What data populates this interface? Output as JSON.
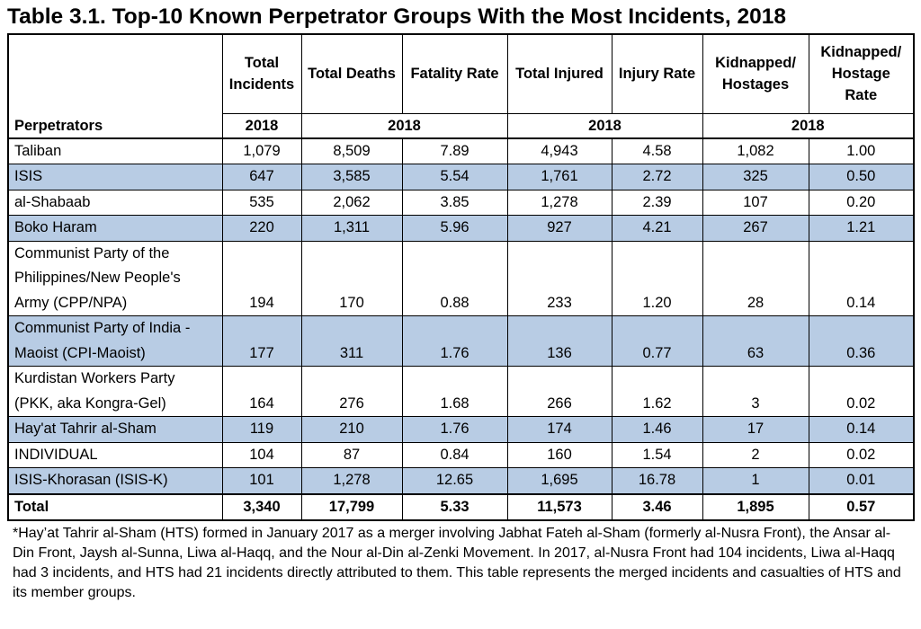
{
  "title": "Table 3.1.  Top-10 Known Perpetrator Groups With the Most Incidents, 2018",
  "headers": {
    "perpetrators": "Perpetrators",
    "total_incidents": "Total Incidents",
    "total_deaths": "Total Deaths",
    "fatality_rate": "Fatality Rate",
    "total_injured": "Total Injured",
    "injury_rate": "Injury Rate",
    "kidnapped": "Kidnapped/ Hostages",
    "kidnapped_rate": "Kidnapped/ Hostage Rate",
    "year": "2018"
  },
  "rows": [
    {
      "name": "Taliban",
      "incidents": "1,079",
      "deaths": "8,509",
      "fatality_rate": "7.89",
      "injured": "4,943",
      "injury_rate": "4.58",
      "kidnapped": "1,082",
      "kidnapped_rate": "1.00"
    },
    {
      "name": "ISIS",
      "incidents": "647",
      "deaths": "3,585",
      "fatality_rate": "5.54",
      "injured": "1,761",
      "injury_rate": "2.72",
      "kidnapped": "325",
      "kidnapped_rate": "0.50"
    },
    {
      "name": "al-Shabaab",
      "incidents": "535",
      "deaths": "2,062",
      "fatality_rate": "3.85",
      "injured": "1,278",
      "injury_rate": "2.39",
      "kidnapped": "107",
      "kidnapped_rate": "0.20"
    },
    {
      "name": "Boko Haram",
      "incidents": "220",
      "deaths": "1,311",
      "fatality_rate": "5.96",
      "injured": "927",
      "injury_rate": "4.21",
      "kidnapped": "267",
      "kidnapped_rate": "1.21"
    },
    {
      "name": "Communist Party of the Philippines/New People's Army (CPP/NPA)",
      "incidents": "194",
      "deaths": "170",
      "fatality_rate": "0.88",
      "injured": "233",
      "injury_rate": "1.20",
      "kidnapped": "28",
      "kidnapped_rate": "0.14"
    },
    {
      "name": "Communist Party of India - Maoist (CPI-Maoist)",
      "incidents": "177",
      "deaths": "311",
      "fatality_rate": "1.76",
      "injured": "136",
      "injury_rate": "0.77",
      "kidnapped": "63",
      "kidnapped_rate": "0.36"
    },
    {
      "name": "Kurdistan Workers Party (PKK, aka Kongra-Gel)",
      "incidents": "164",
      "deaths": "276",
      "fatality_rate": "1.68",
      "injured": "266",
      "injury_rate": "1.62",
      "kidnapped": "3",
      "kidnapped_rate": "0.02"
    },
    {
      "name": "Hay'at Tahrir al-Sham",
      "incidents": "119",
      "deaths": "210",
      "fatality_rate": "1.76",
      "injured": "174",
      "injury_rate": "1.46",
      "kidnapped": "17",
      "kidnapped_rate": "0.14"
    },
    {
      "name": "INDIVIDUAL",
      "incidents": "104",
      "deaths": "87",
      "fatality_rate": "0.84",
      "injured": "160",
      "injury_rate": "1.54",
      "kidnapped": "2",
      "kidnapped_rate": "0.02"
    },
    {
      "name": "ISIS-Khorasan (ISIS-K)",
      "incidents": "101",
      "deaths": "1,278",
      "fatality_rate": "12.65",
      "injured": "1,695",
      "injury_rate": "16.78",
      "kidnapped": "1",
      "kidnapped_rate": "0.01"
    }
  ],
  "total": {
    "name": "Total",
    "incidents": "3,340",
    "deaths": "17,799",
    "fatality_rate": "5.33",
    "injured": "11,573",
    "injury_rate": "3.46",
    "kidnapped": "1,895",
    "kidnapped_rate": "0.57"
  },
  "footnote": "*Hay’at Tahrir al-Sham (HTS) formed in January 2017 as a merger involving Jabhat Fateh al-Sham (formerly al-Nusra Front), the Ansar al-Din Front, Jaysh al-Sunna, Liwa al-Haqq, and the Nour al-Din al-Zenki Movement.  In 2017, al-Nusra Front had 104 incidents, Liwa al-Haqq had 3 incidents, and HTS had 21 incidents directly attributed to them.  This table represents the merged incidents and casualties of HTS and its member groups.",
  "colors": {
    "shade": "#b8cce4",
    "border": "#000000"
  }
}
